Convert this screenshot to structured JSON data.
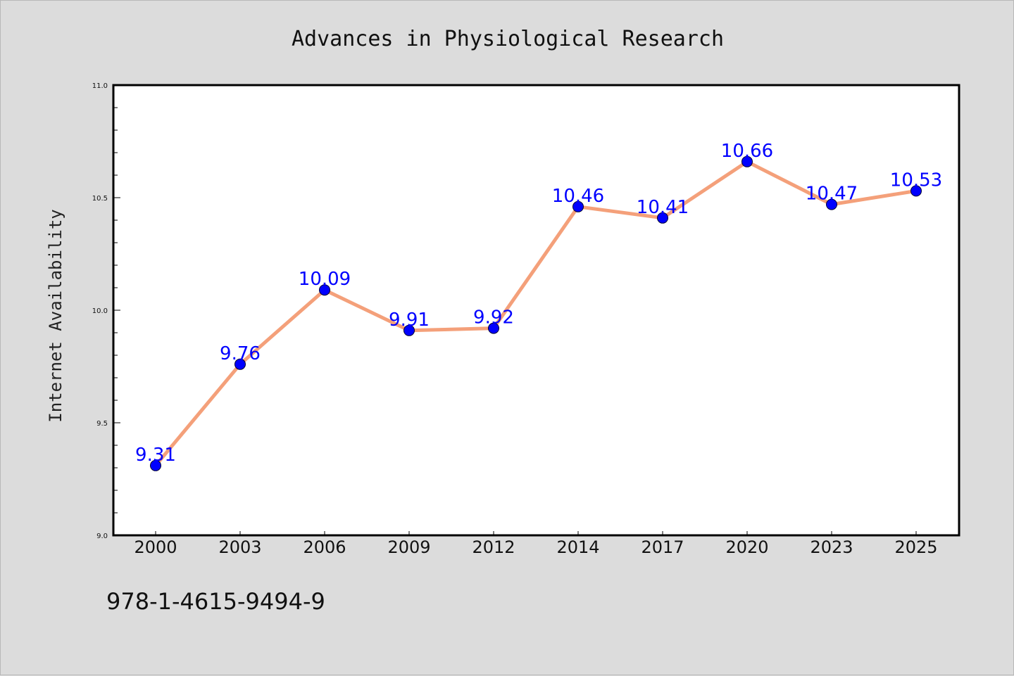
{
  "chart_data": {
    "type": "line",
    "title": "Advances in Physiological Research",
    "xlabel": "",
    "ylabel": "Internet Availability",
    "categories": [
      "2000",
      "2003",
      "2006",
      "2009",
      "2012",
      "2014",
      "2017",
      "2020",
      "2023",
      "2025"
    ],
    "series": [
      {
        "values": [
          9.31,
          9.76,
          10.09,
          9.91,
          9.92,
          10.46,
          10.41,
          10.66,
          10.47,
          10.53
        ],
        "labels": [
          "9.31",
          "9.76",
          "10.09",
          "9.91",
          "9.92",
          "10.46",
          "10.41",
          "10.66",
          "10.47",
          "10.53"
        ],
        "line_color": "#f4a07a",
        "marker_color": "#0000ff"
      }
    ],
    "ylim": [
      9.0,
      11.0
    ],
    "yticks": [
      "9.0",
      "9.5",
      "10.0",
      "10.5",
      "11.0"
    ],
    "grid": false,
    "legend": "none"
  },
  "footnote": "978-1-4615-9494-9",
  "colors": {
    "background": "#dcdcdc",
    "plot_area": "#ffffff",
    "line": "#f4a07a",
    "marker": "#0000ff",
    "data_label": "#0000ff"
  }
}
